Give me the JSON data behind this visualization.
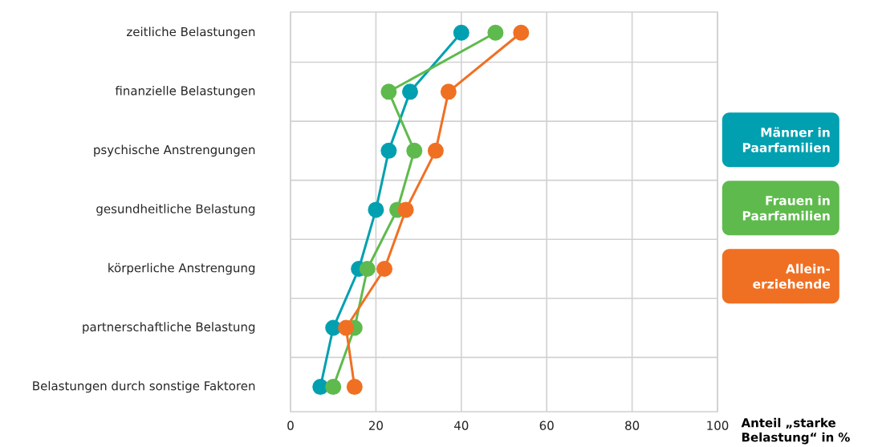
{
  "chart_data": {
    "type": "line",
    "orientation": "horizontal",
    "categories": [
      "zeitliche Belastungen",
      "finanzielle Belastungen",
      "psychische Anstrengungen",
      "gesundheitliche Belastung",
      "körperliche Anstrengung",
      "partnerschaftliche Belastung",
      "Belastungen durch sonstige Faktoren"
    ],
    "series": [
      {
        "name": "Männer in Paarfamilien",
        "color": "#00a0b0",
        "values": [
          40,
          28,
          23,
          20,
          16,
          10,
          7
        ]
      },
      {
        "name": "Frauen in Paarfamilien",
        "color": "#5fba4d",
        "values": [
          48,
          23,
          29,
          25,
          18,
          15,
          10
        ]
      },
      {
        "name": "Allein-erziehende",
        "color": "#f07023",
        "values": [
          54,
          37,
          34,
          27,
          22,
          13,
          15
        ]
      }
    ],
    "xlabel": "**Anteil „starke Belastung“ in %**",
    "xlim": [
      0,
      100
    ],
    "xticks": [
      0,
      20,
      40,
      60,
      80,
      100
    ],
    "grid": true,
    "legend": "right",
    "marker": "circle",
    "line_style": "solid"
  }
}
